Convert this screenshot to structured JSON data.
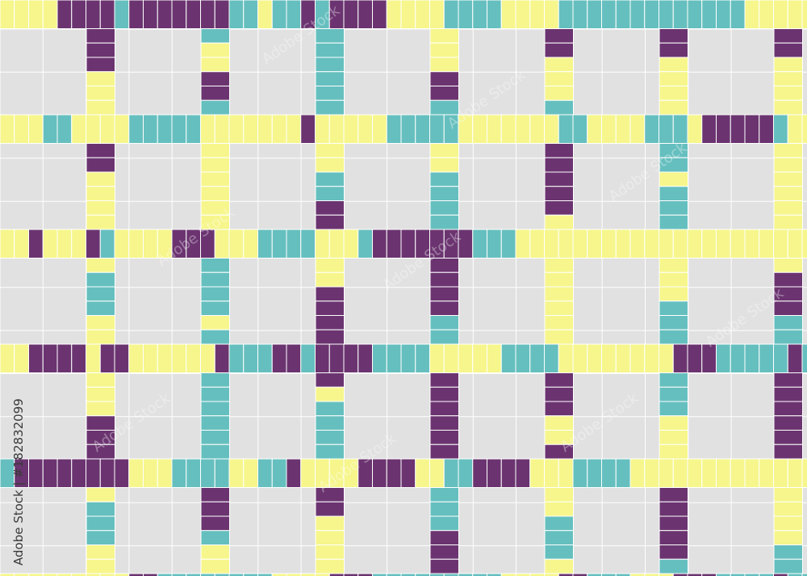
{
  "watermark": {
    "id": "Adobe Stock | #182832099",
    "brand": "Adobe Stock"
  }
}
